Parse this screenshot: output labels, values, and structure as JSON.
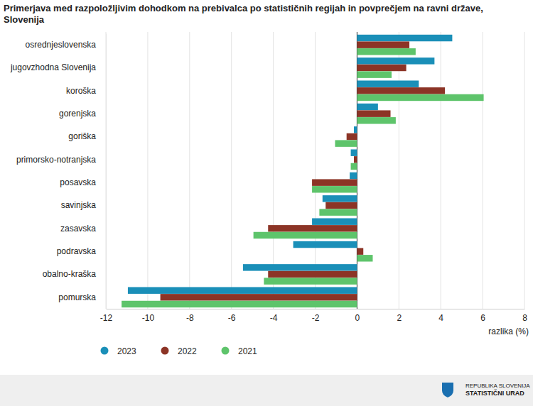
{
  "chart_data": {
    "type": "bar",
    "orientation": "horizontal",
    "title": "Primerjava med razpoložljivim dohodkom na prebivalca po statističnih regijah in povprečjem na ravni države, Slovenija",
    "x_label": "razlika (%)",
    "categories": [
      "osrednjeslovenska",
      "jugovzhodna Slovenija",
      "koroška",
      "gorenjska",
      "goriška",
      "primorsko-notranjska",
      "posavska",
      "savinjska",
      "zasavska",
      "podravska",
      "obalno-kraška",
      "pomurska"
    ],
    "series": [
      {
        "name": "2023",
        "color": "#1a8fb8",
        "values": [
          4.55,
          3.7,
          2.95,
          1.0,
          -0.15,
          -0.3,
          -0.35,
          -1.65,
          -2.15,
          -3.05,
          -5.45,
          -10.95
        ]
      },
      {
        "name": "2022",
        "color": "#8c3426",
        "values": [
          2.5,
          2.35,
          4.2,
          1.6,
          -0.5,
          -0.15,
          -2.15,
          -1.5,
          -4.25,
          0.3,
          -4.25,
          -9.4
        ]
      },
      {
        "name": "2021",
        "color": "#5ec46b",
        "values": [
          2.8,
          1.65,
          6.05,
          1.85,
          -1.05,
          -0.3,
          -2.15,
          -1.8,
          -4.95,
          0.75,
          -4.45,
          -11.25
        ]
      }
    ],
    "xlim": [
      -12,
      8
    ],
    "xticks": [
      -12,
      -10,
      -8,
      -6,
      -4,
      -2,
      0,
      2,
      4,
      6,
      8
    ],
    "grid": true,
    "legend": "bottom",
    "footer": [
      "REPUBLIKA SLOVENIJA",
      "STATISTIČNI URAD"
    ]
  }
}
